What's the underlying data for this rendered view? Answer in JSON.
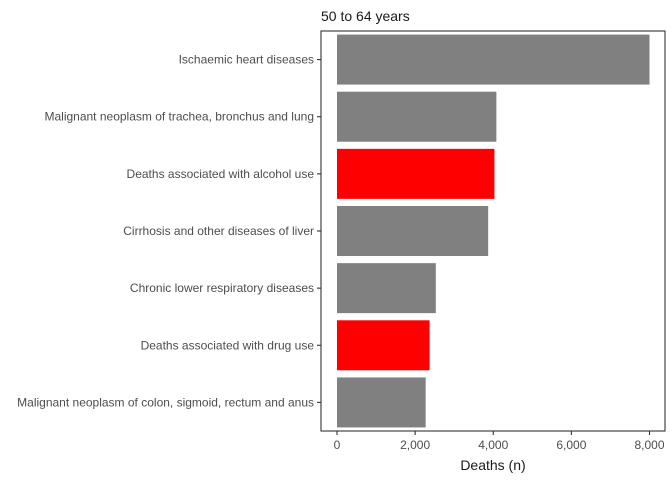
{
  "chart_data": {
    "type": "bar",
    "orientation": "horizontal",
    "title": "50 to 64 years",
    "xlabel": "Deaths (n)",
    "ylabel": "",
    "xlim": [
      -400,
      8400
    ],
    "xticks": [
      0,
      2000,
      4000,
      6000,
      8000
    ],
    "xtick_labels": [
      "0",
      "2,000",
      "4,000",
      "6,000",
      "8,000"
    ],
    "grid": false,
    "categories": [
      "Ischaemic heart diseases",
      "Malignant neoplasm of trachea, bronchus and lung",
      "Deaths associated with alcohol use",
      "Cirrhosis and other diseases of liver",
      "Chronic lower respiratory diseases",
      "Deaths associated with drug use",
      "Malignant neoplasm of colon, sigmoid, rectum and anus"
    ],
    "values": [
      8000,
      4080,
      4030,
      3870,
      2530,
      2370,
      2270
    ],
    "highlighted": [
      false,
      false,
      true,
      false,
      false,
      true,
      false
    ],
    "colors": {
      "default": "#808080",
      "highlight": "#ff0000"
    }
  }
}
